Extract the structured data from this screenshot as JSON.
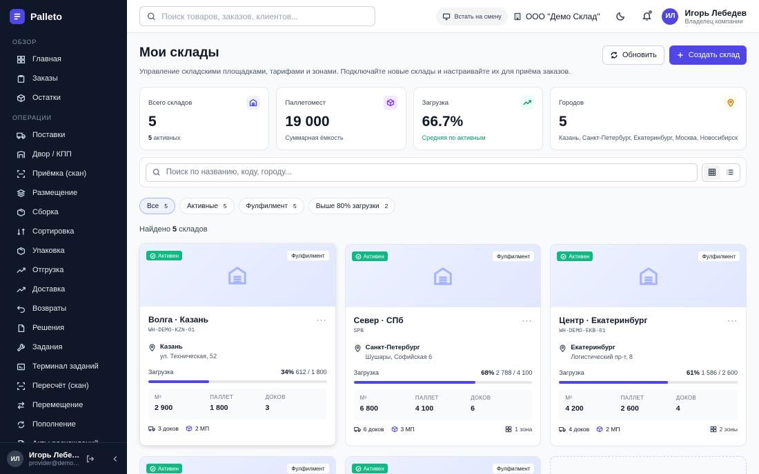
{
  "app": {
    "name": "Palleto"
  },
  "sidebar": {
    "sections": [
      {
        "label": "ОБЗОР",
        "items": [
          {
            "label": "Главная",
            "icon": "grid-icon"
          },
          {
            "label": "Заказы",
            "icon": "clipboard-icon"
          },
          {
            "label": "Остатки",
            "icon": "box-icon"
          }
        ]
      },
      {
        "label": "ОПЕРАЦИИ",
        "items": [
          {
            "label": "Поставки",
            "icon": "truck-icon"
          },
          {
            "label": "Двор / КПП",
            "icon": "gate-icon"
          },
          {
            "label": "Приёмка (скан)",
            "icon": "scan-icon"
          },
          {
            "label": "Размещение",
            "icon": "layers-icon"
          },
          {
            "label": "Сборка",
            "icon": "package-icon"
          },
          {
            "label": "Сортировка",
            "icon": "sort-icon"
          },
          {
            "label": "Упаковка",
            "icon": "package-icon"
          },
          {
            "label": "Отгрузка",
            "icon": "trend-icon"
          },
          {
            "label": "Доставка",
            "icon": "trend-icon"
          },
          {
            "label": "Возвраты",
            "icon": "return-icon"
          },
          {
            "label": "Решения",
            "icon": "file-icon"
          },
          {
            "label": "Задания",
            "icon": "wrench-icon"
          },
          {
            "label": "Терминал заданий",
            "icon": "terminal-icon"
          },
          {
            "label": "Пересчёт (скан)",
            "icon": "scan-icon"
          },
          {
            "label": "Перемещение",
            "icon": "swap-icon"
          },
          {
            "label": "Пополнение",
            "icon": "refill-icon"
          },
          {
            "label": "Акты расхождений",
            "icon": "file-icon"
          }
        ]
      }
    ],
    "user": {
      "initials": "ИЛ",
      "name": "Игорь Лебедев",
      "email": "provider@demo.palleto.ru"
    }
  },
  "topbar": {
    "search_placeholder": "Поиск товаров, заказов, клиентов...",
    "shift_label": "Встать на смену",
    "company": "ООО \"Демо Склад\"",
    "user": {
      "initials": "ИЛ",
      "name": "Игорь Лебедев",
      "role": "Владелец компании"
    }
  },
  "page": {
    "title": "Мои склады",
    "subtitle": "Управление складскими площадками, тарифами и зонами. Подключайте новые склады и настраивайте их для приёма заказов.",
    "refresh_label": "Обновить",
    "create_label": "Создать склад"
  },
  "stats": [
    {
      "label": "Всего складов",
      "value": "5",
      "sub_num": "5",
      "sub": "активных",
      "icon": "warehouse-icon",
      "color": "#4f46e5",
      "bg": "#eef2ff"
    },
    {
      "label": "Паллетомест",
      "value": "19 000",
      "sub": "Суммарная ёмкость",
      "icon": "cube-icon",
      "color": "#7c3aed",
      "bg": "#f3e8ff"
    },
    {
      "label": "Загрузка",
      "value": "66.7%",
      "sub": "Средняя по активным",
      "icon": "trend-up-icon",
      "color": "#059669",
      "bg": "#ecfdf5"
    },
    {
      "label": "Городов",
      "value": "5",
      "sub": "Казань, Санкт-Петербург, Екатеринбург, Москва, Новосибирск",
      "icon": "pin-icon",
      "color": "#d97706",
      "bg": "#fffbeb"
    }
  ],
  "filter": {
    "search_placeholder": "Поиск по названию, коду, городу...",
    "chips": [
      {
        "label": "Все",
        "count": "5",
        "active": true
      },
      {
        "label": "Активные",
        "count": "5",
        "active": false
      },
      {
        "label": "Фулфилмент",
        "count": "5",
        "active": false
      },
      {
        "label": "Выше 80% загрузки",
        "count": "2",
        "active": false
      }
    ],
    "found_prefix": "Найдено",
    "found_count": "5",
    "found_suffix": "складов"
  },
  "cards": [
    {
      "status": "Активен",
      "type": "Фулфилмент",
      "title": "Волга · Казань",
      "code": "WH-DEMO-KZN-01",
      "city": "Казань",
      "address": "ул. Техническая, 52",
      "load_label": "Загрузка",
      "load_pct": "34%",
      "load_detail": "612 / 1 800",
      "load_fraction": 0.34,
      "m2_label": "М²",
      "m2": "2 900",
      "pallet_label": "ПАЛЛЕТ",
      "pallet": "1 800",
      "docks_label": "ДОКОВ",
      "docks": "3",
      "foot_docks": "3 доков",
      "foot_mp": "2 МП",
      "foot_zones": ""
    },
    {
      "status": "Активен",
      "type": "Фулфилмент",
      "title": "Север · СПб",
      "code": "SPB",
      "city": "Санкт-Петербург",
      "address": "Шушары, Софийская 6",
      "load_label": "Загрузка",
      "load_pct": "68%",
      "load_detail": "2 788 / 4 100",
      "load_fraction": 0.68,
      "m2_label": "М²",
      "m2": "6 800",
      "pallet_label": "ПАЛЛЕТ",
      "pallet": "4 100",
      "docks_label": "ДОКОВ",
      "docks": "6",
      "foot_docks": "6 доков",
      "foot_mp": "3 МП",
      "foot_zones": "1 зона"
    },
    {
      "status": "Активен",
      "type": "Фулфилмент",
      "title": "Центр · Екатеринбург",
      "code": "WH-DEMO-EKB-01",
      "city": "Екатеринбург",
      "address": "Логистический пр-т, 8",
      "load_label": "Загрузка",
      "load_pct": "61%",
      "load_detail": "1 586 / 2 600",
      "load_fraction": 0.61,
      "m2_label": "М²",
      "m2": "4 200",
      "pallet_label": "ПАЛЛЕТ",
      "pallet": "2 600",
      "docks_label": "ДОКОВ",
      "docks": "4",
      "foot_docks": "4 доков",
      "foot_mp": "2 МП",
      "foot_zones": "2 зоны"
    }
  ],
  "cards_row2": [
    {
      "status": "Активен",
      "type": "Фулфилмент"
    },
    {
      "status": "Активен",
      "type": "Фулфилмент"
    }
  ]
}
